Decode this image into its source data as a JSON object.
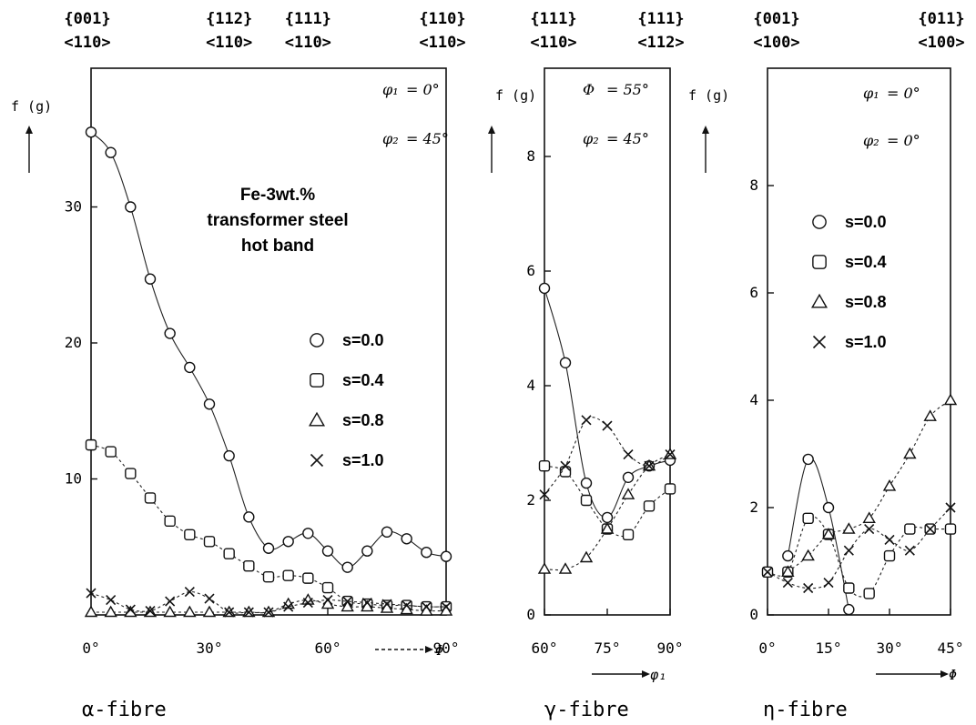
{
  "chart_data": [
    {
      "type": "scatter",
      "panel": "alpha-fibre",
      "fibre_label": "α-fibre",
      "x_symbol": "Φ",
      "y_symbol": "f (g)",
      "xlim": [
        0,
        90
      ],
      "ylim": [
        0,
        40
      ],
      "x_ticks": [
        0,
        30,
        60,
        90
      ],
      "x_tick_labels": [
        "0°",
        "30°",
        "60°",
        "90°"
      ],
      "y_ticks": [
        10,
        20,
        30
      ],
      "y_tick_labels": [
        "10",
        "20",
        "30"
      ],
      "top_labels": [
        {
          "x": 0,
          "hkl": "{001}",
          "uvw": "<110>"
        },
        {
          "x": 35,
          "hkl": "{112}",
          "uvw": "<110>"
        },
        {
          "x": 55,
          "hkl": "{111}",
          "uvw": "<110>"
        },
        {
          "x": 90,
          "hkl": "{110}",
          "uvw": "<110>"
        }
      ],
      "params": [
        {
          "symbol": "φ₁",
          "value": "= 0°"
        },
        {
          "symbol": "φ₂",
          "value": "= 45°"
        }
      ],
      "annotation": [
        "Fe-3wt.%",
        "transformer steel",
        "hot band"
      ],
      "legend_position": "right-middle",
      "series": [
        {
          "name": "s=0.0",
          "marker": "circle",
          "x": [
            0,
            5,
            10,
            15,
            20,
            25,
            30,
            35,
            40,
            45,
            50,
            55,
            60,
            65,
            70,
            75,
            80,
            85,
            90
          ],
          "y": [
            35.5,
            34,
            30,
            24.7,
            20.7,
            18.2,
            15.5,
            11.7,
            7.2,
            4.9,
            5.4,
            6,
            4.7,
            3.5,
            4.7,
            6.1,
            5.6,
            4.6,
            4.3
          ]
        },
        {
          "name": "s=0.4",
          "marker": "square",
          "x": [
            0,
            5,
            10,
            15,
            20,
            25,
            30,
            35,
            40,
            45,
            50,
            55,
            60,
            65,
            70,
            75,
            80,
            85,
            90
          ],
          "y": [
            12.5,
            12,
            10.4,
            8.6,
            6.9,
            5.9,
            5.4,
            4.5,
            3.6,
            2.8,
            2.9,
            2.7,
            2,
            1,
            0.8,
            0.7,
            0.7,
            0.6,
            0.6
          ]
        },
        {
          "name": "s=0.8",
          "marker": "triangle",
          "x": [
            0,
            5,
            10,
            15,
            20,
            25,
            30,
            35,
            40,
            45,
            50,
            55,
            60,
            65,
            70,
            75,
            80,
            85,
            90
          ],
          "y": [
            0.2,
            0.2,
            0.2,
            0.2,
            0.2,
            0.2,
            0.2,
            0.2,
            0.2,
            0.2,
            0.8,
            1.1,
            0.8,
            0.6,
            0.6,
            0.5,
            0.4,
            0.3,
            0.3
          ]
        },
        {
          "name": "s=1.0",
          "marker": "cross",
          "x": [
            0,
            5,
            10,
            15,
            20,
            25,
            30,
            35,
            40,
            45,
            50,
            55,
            60,
            65,
            70,
            75,
            80,
            85,
            90
          ],
          "y": [
            1.6,
            1.1,
            0.4,
            0.3,
            1,
            1.7,
            1.2,
            0.2,
            0.2,
            0.2,
            0.6,
            0.9,
            1.1,
            1,
            0.9,
            0.8,
            0.7,
            0.6,
            0.6
          ]
        }
      ]
    },
    {
      "type": "scatter",
      "panel": "gamma-fibre",
      "fibre_label": "γ-fibre",
      "x_symbol": "φ₁",
      "y_symbol": "f (g)",
      "xlim": [
        60,
        90
      ],
      "ylim": [
        0,
        10
      ],
      "x_ticks": [
        60,
        75,
        90
      ],
      "x_tick_labels": [
        "60°",
        "75°",
        "90°"
      ],
      "y_ticks": [
        0,
        2,
        4,
        6,
        8
      ],
      "y_tick_labels": [
        "0",
        "2",
        "4",
        "6",
        "8"
      ],
      "top_labels": [
        {
          "x": 60,
          "hkl": "{111}",
          "uvw": "<110>"
        },
        {
          "x": 90,
          "hkl": "{111}",
          "uvw": "<112>"
        }
      ],
      "params": [
        {
          "symbol": "Φ",
          "value": "= 55°"
        },
        {
          "symbol": "φ₂",
          "value": "= 45°"
        }
      ],
      "series": [
        {
          "name": "s=0.0",
          "marker": "circle",
          "x": [
            60,
            65,
            70,
            75,
            80,
            85,
            90
          ],
          "y": [
            5.7,
            4.4,
            2.3,
            1.7,
            2.4,
            2.6,
            2.7
          ]
        },
        {
          "name": "s=0.4",
          "marker": "square",
          "x": [
            60,
            65,
            70,
            75,
            80,
            85,
            90
          ],
          "y": [
            2.6,
            2.5,
            2,
            1.5,
            1.4,
            1.9,
            2.2
          ]
        },
        {
          "name": "s=0.8",
          "marker": "triangle",
          "x": [
            60,
            65,
            70,
            75,
            80,
            85,
            90
          ],
          "y": [
            0.8,
            0.8,
            1,
            1.5,
            2.1,
            2.6,
            2.8
          ]
        },
        {
          "name": "s=1.0",
          "marker": "cross",
          "x": [
            60,
            65,
            70,
            75,
            80,
            85,
            90
          ],
          "y": [
            2.1,
            2.6,
            3.4,
            3.3,
            2.8,
            2.6,
            2.8
          ]
        }
      ]
    },
    {
      "type": "scatter",
      "panel": "eta-fibre",
      "fibre_label": "η-fibre",
      "x_symbol": "Φ",
      "y_symbol": "f (g)",
      "xlim": [
        0,
        45
      ],
      "ylim": [
        0,
        10
      ],
      "x_ticks": [
        0,
        15,
        30,
        45
      ],
      "x_tick_labels": [
        "0°",
        "15°",
        "30°",
        "45°"
      ],
      "y_ticks": [
        0,
        2,
        4,
        6,
        8
      ],
      "y_tick_labels": [
        "0",
        "2",
        "4",
        "6",
        "8"
      ],
      "top_labels": [
        {
          "x": 0,
          "hkl": "{001}",
          "uvw": "<100>"
        },
        {
          "x": 45,
          "hkl": "{011}",
          "uvw": "<100>"
        }
      ],
      "params": [
        {
          "symbol": "φ₁",
          "value": "= 0°"
        },
        {
          "symbol": "φ₂",
          "value": "= 0°"
        }
      ],
      "legend_position": "upper-middle",
      "series": [
        {
          "name": "s=0.0",
          "marker": "circle",
          "x": [
            5,
            10,
            15,
            20
          ],
          "y": [
            1.1,
            2.9,
            2,
            0.1
          ]
        },
        {
          "name": "s=0.4",
          "marker": "square",
          "x": [
            0,
            5,
            10,
            15,
            20,
            25,
            30,
            35,
            40,
            45
          ],
          "y": [
            0.8,
            0.8,
            1.8,
            1.5,
            0.5,
            0.4,
            1.1,
            1.6,
            1.6,
            1.6
          ]
        },
        {
          "name": "s=0.8",
          "marker": "triangle",
          "x": [
            5,
            10,
            15,
            20,
            25,
            30,
            35,
            40,
            45
          ],
          "y": [
            0.8,
            1.1,
            1.5,
            1.6,
            1.8,
            2.4,
            3,
            3.7,
            4
          ]
        },
        {
          "name": "s=1.0",
          "marker": "cross",
          "x": [
            0,
            5,
            10,
            15,
            20,
            25,
            30,
            35,
            40,
            45
          ],
          "y": [
            0.8,
            0.6,
            0.5,
            0.6,
            1.2,
            1.6,
            1.4,
            1.2,
            1.6,
            2
          ]
        }
      ]
    }
  ]
}
